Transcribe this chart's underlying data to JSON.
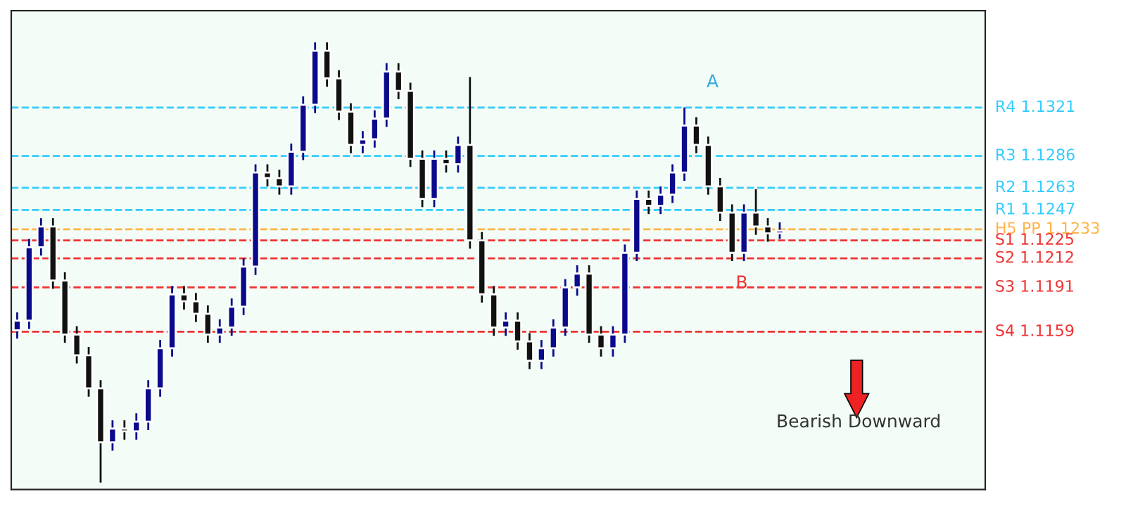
{
  "chart_data": {
    "type": "candlestick",
    "categories": [
      null,
      null,
      null,
      null,
      null,
      null,
      null,
      null,
      null,
      null,
      null,
      null,
      null,
      null,
      null,
      null,
      null,
      null,
      null,
      null,
      null,
      null,
      null,
      null,
      null,
      null,
      null,
      null,
      null,
      null,
      null,
      null,
      null,
      null,
      null,
      null,
      null,
      null,
      null,
      null,
      null,
      null,
      null,
      null,
      null,
      null,
      null,
      null,
      null,
      null,
      null,
      null,
      null,
      null,
      null,
      null,
      null,
      null,
      null,
      null,
      null,
      null,
      null,
      null,
      null
    ],
    "ohlc": [
      [
        1.116,
        1.1173,
        1.1154,
        1.1167
      ],
      [
        1.1167,
        1.1226,
        1.1161,
        1.122
      ],
      [
        1.122,
        1.1241,
        1.1214,
        1.1235
      ],
      [
        1.1235,
        1.1241,
        1.119,
        1.1196
      ],
      [
        1.1196,
        1.1202,
        1.1151,
        1.1157
      ],
      [
        1.1157,
        1.1163,
        1.1136,
        1.1142
      ],
      [
        1.1142,
        1.1148,
        1.1112,
        1.1118
      ],
      [
        1.1118,
        1.1124,
        1.105,
        1.1079
      ],
      [
        1.1079,
        1.1095,
        1.1073,
        1.1089
      ],
      [
        1.1089,
        1.1095,
        1.1081,
        1.1087
      ],
      [
        1.1087,
        1.11,
        1.1081,
        1.1094
      ],
      [
        1.1094,
        1.1124,
        1.1088,
        1.1118
      ],
      [
        1.1118,
        1.1153,
        1.1112,
        1.1147
      ],
      [
        1.1147,
        1.1192,
        1.1141,
        1.1186
      ],
      [
        1.1186,
        1.1192,
        1.1175,
        1.1181
      ],
      [
        1.1181,
        1.1187,
        1.1166,
        1.1172
      ],
      [
        1.1172,
        1.1178,
        1.1151,
        1.1157
      ],
      [
        1.1157,
        1.1168,
        1.1151,
        1.1162
      ],
      [
        1.1162,
        1.1183,
        1.1156,
        1.1177
      ],
      [
        1.1177,
        1.1212,
        1.1171,
        1.1206
      ],
      [
        1.1206,
        1.128,
        1.12,
        1.1274
      ],
      [
        1.1274,
        1.128,
        1.1264,
        1.127
      ],
      [
        1.127,
        1.1276,
        1.1258,
        1.1264
      ],
      [
        1.1264,
        1.1295,
        1.1258,
        1.1289
      ],
      [
        1.1289,
        1.1329,
        1.1283,
        1.1323
      ],
      [
        1.1323,
        1.1368,
        1.1317,
        1.1362
      ],
      [
        1.1362,
        1.1368,
        1.1336,
        1.1342
      ],
      [
        1.1342,
        1.1348,
        1.1312,
        1.1318
      ],
      [
        1.1318,
        1.1324,
        1.1288,
        1.1294
      ],
      [
        1.1294,
        1.1304,
        1.1288,
        1.1298
      ],
      [
        1.1298,
        1.1319,
        1.1292,
        1.1313
      ],
      [
        1.1313,
        1.1353,
        1.1307,
        1.1347
      ],
      [
        1.1347,
        1.1353,
        1.1327,
        1.1333
      ],
      [
        1.1333,
        1.1339,
        1.1278,
        1.1284
      ],
      [
        1.1284,
        1.129,
        1.1249,
        1.1255
      ],
      [
        1.1255,
        1.129,
        1.1249,
        1.1284
      ],
      [
        1.1284,
        1.129,
        1.1274,
        1.128
      ],
      [
        1.128,
        1.13,
        1.1274,
        1.1294
      ],
      [
        1.1294,
        1.1343,
        1.1219,
        1.1225
      ],
      [
        1.1225,
        1.1231,
        1.118,
        1.1186
      ],
      [
        1.1186,
        1.1192,
        1.1156,
        1.1162
      ],
      [
        1.1162,
        1.1173,
        1.1156,
        1.1167
      ],
      [
        1.1167,
        1.1173,
        1.1146,
        1.1152
      ],
      [
        1.1152,
        1.1158,
        1.1132,
        1.1138
      ],
      [
        1.1138,
        1.1153,
        1.1132,
        1.1147
      ],
      [
        1.1147,
        1.1168,
        1.1141,
        1.1162
      ],
      [
        1.1162,
        1.1197,
        1.1156,
        1.1191
      ],
      [
        1.1191,
        1.1207,
        1.1185,
        1.1201
      ],
      [
        1.1201,
        1.1207,
        1.1151,
        1.1157
      ],
      [
        1.1157,
        1.1163,
        1.1141,
        1.1147
      ],
      [
        1.1147,
        1.1163,
        1.1141,
        1.1157
      ],
      [
        1.1157,
        1.1222,
        1.1151,
        1.1216
      ],
      [
        1.1216,
        1.1261,
        1.121,
        1.1255
      ],
      [
        1.1255,
        1.1261,
        1.1244,
        1.125
      ],
      [
        1.125,
        1.1264,
        1.1244,
        1.1258
      ],
      [
        1.1258,
        1.128,
        1.1252,
        1.1274
      ],
      [
        1.1274,
        1.1321,
        1.1268,
        1.1308
      ],
      [
        1.1308,
        1.1314,
        1.1288,
        1.1294
      ],
      [
        1.1294,
        1.13,
        1.1258,
        1.1264
      ],
      [
        1.1264,
        1.127,
        1.1239,
        1.1245
      ],
      [
        1.1245,
        1.1251,
        1.121,
        1.1216
      ],
      [
        1.1216,
        1.1251,
        1.121,
        1.1245
      ],
      [
        1.1245,
        1.1262,
        1.1229,
        1.1235
      ],
      [
        1.1235,
        1.1241,
        1.1224,
        1.123
      ],
      [
        1.123,
        1.1238,
        1.1226,
        1.1232
      ]
    ],
    "ylim": [
      1.1045,
      1.1391
    ],
    "ref_lines": [
      {
        "axis": "y",
        "value": 1.1321,
        "label": "R4 1.1321",
        "color": "#33ccff",
        "line_style": "dashed"
      },
      {
        "axis": "y",
        "value": 1.1286,
        "label": "R3 1.1286",
        "color": "#33ccff",
        "line_style": "dashed"
      },
      {
        "axis": "y",
        "value": 1.1263,
        "label": "R2 1.1263",
        "color": "#33ccff",
        "line_style": "dashed"
      },
      {
        "axis": "y",
        "value": 1.1247,
        "label": "R1 1.1247",
        "color": "#33ccff",
        "line_style": "dashed"
      },
      {
        "axis": "y",
        "value": 1.1233,
        "label": "H5 PP 1.1233",
        "color": "#ffb347",
        "line_style": "dashed"
      },
      {
        "axis": "y",
        "value": 1.1225,
        "label": "S1 1.1225",
        "color": "#ee3333",
        "line_style": "dashed"
      },
      {
        "axis": "y",
        "value": 1.1212,
        "label": "S2 1.1212",
        "color": "#ee3333",
        "line_style": "dashed"
      },
      {
        "axis": "y",
        "value": 1.1191,
        "label": "S3 1.1191",
        "color": "#ee3333",
        "line_style": "dashed"
      },
      {
        "axis": "y",
        "value": 1.1159,
        "label": "S4 1.1159",
        "color": "#ee3333",
        "line_style": "dashed"
      }
    ],
    "annotations": [
      "A",
      "B",
      "Bearish Downward"
    ]
  }
}
